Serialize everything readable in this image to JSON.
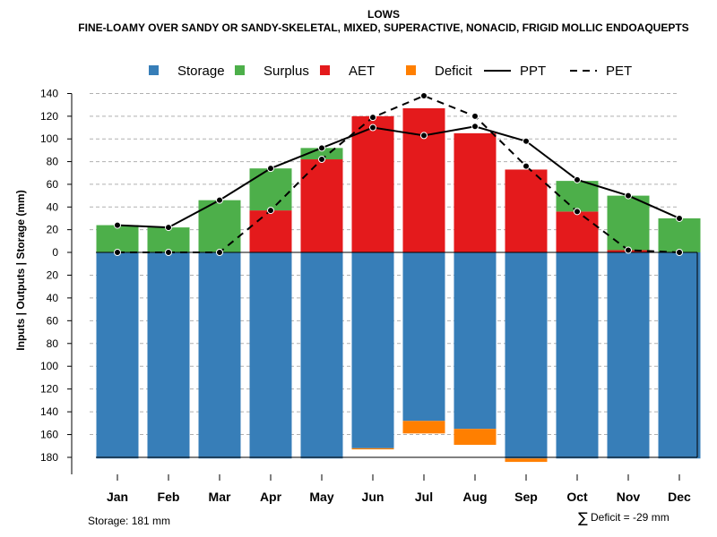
{
  "chart_data": {
    "type": "bar",
    "title": "LOWS",
    "subtitle": "FINE-LOAMY OVER SANDY OR SANDY-SKELETAL, MIXED, SUPERACTIVE, NONACID, FRIGID MOLLIC ENDOAQUEPTS",
    "ylabel": "Inputs | Outputs | Storage     (mm)",
    "ylim": [
      -180,
      140
    ],
    "yticks": [
      140,
      120,
      100,
      80,
      60,
      40,
      20,
      0,
      -20,
      -40,
      -60,
      -80,
      -100,
      -120,
      -140,
      -160,
      -180
    ],
    "ytick_labels": [
      "140",
      "120",
      "100",
      "80",
      "60",
      "40",
      "20",
      "0",
      "20",
      "40",
      "60",
      "80",
      "100",
      "120",
      "140",
      "160",
      "180"
    ],
    "categories": [
      "Jan",
      "Feb",
      "Mar",
      "Apr",
      "May",
      "Jun",
      "Jul",
      "Aug",
      "Sep",
      "Oct",
      "Nov",
      "Dec"
    ],
    "series": [
      {
        "name": "Storage",
        "color": "#377EB8",
        "values": [
          -181,
          -181,
          -181,
          -181,
          -181,
          -172,
          -148,
          -155,
          -181,
          -181,
          -181,
          -181
        ]
      },
      {
        "name": "Surplus",
        "color": "#4DAF4A",
        "values": [
          24,
          22,
          46,
          37,
          10,
          0,
          0,
          0,
          0,
          27,
          48,
          30
        ]
      },
      {
        "name": "AET",
        "color": "#E41A1C",
        "values": [
          0,
          0,
          0,
          37,
          82,
          120,
          127,
          105,
          73,
          36,
          2,
          0
        ]
      },
      {
        "name": "Deficit",
        "color": "#FF7F00",
        "values": [
          0,
          0,
          0,
          0,
          0,
          -1,
          -11,
          -14,
          -3,
          0,
          0,
          0
        ]
      },
      {
        "name": "PPT",
        "color": "#000000",
        "values": [
          24,
          22,
          46,
          74,
          92,
          110,
          103,
          111,
          98,
          64,
          50,
          30
        ]
      },
      {
        "name": "PET",
        "color": "#000000",
        "values": [
          0,
          0,
          0,
          37,
          82,
          119,
          138,
          120,
          76,
          36,
          2,
          0
        ]
      }
    ],
    "legend_position": "top"
  },
  "annotations": {
    "storage": "Storage: 181 mm",
    "deficit_symbol": "∑",
    "deficit": "Deficit = -29 mm"
  }
}
